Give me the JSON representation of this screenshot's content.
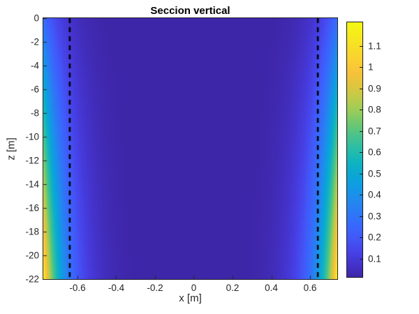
{
  "figure": {
    "title": "Seccion vertical",
    "xlabel": "x [m]",
    "ylabel": "z [m]"
  },
  "chart_data": {
    "type": "heatmap",
    "title": "Seccion vertical",
    "xlabel": "x [m]",
    "ylabel": "z [m]",
    "xlim": [
      -0.7765,
      0.7405
    ],
    "zlim": [
      -22,
      0
    ],
    "x_ticks": [
      "-0.6",
      "-0.4",
      "-0.2",
      "0",
      "0.2",
      "0.4",
      "0.6"
    ],
    "x_tick_values": [
      -0.6,
      -0.4,
      -0.2,
      0,
      0.2,
      0.4,
      0.6
    ],
    "z_ticks": [
      "0",
      "-2",
      "-4",
      "-6",
      "-8",
      "-10",
      "-12",
      "-14",
      "-16",
      "-18",
      "-20",
      "-22"
    ],
    "z_tick_values": [
      0,
      -2,
      -4,
      -6,
      -8,
      -10,
      -12,
      -14,
      -16,
      -18,
      -20,
      -22
    ],
    "grid": false,
    "dashed_lines_x": [
      -0.64,
      0.64
    ],
    "dashed_line_color": "#000000",
    "field_model": {
      "description": "v(x,z) = wall_amplitude(z) * exp(-distance_to_nearest_side_wall / decay_length); value is ~0 in the interior and peaks at the left/right domain edges, increasing with depth",
      "wall_amplitude_at_z0": 0.28,
      "wall_amplitude_at_zminus22": 1.18,
      "decay_length_m": 0.1
    },
    "colorbar": {
      "vmin": 0.01,
      "vmax": 1.215,
      "ticks": [
        "0.1",
        "0.2",
        "0.3",
        "0.4",
        "0.5",
        "0.6",
        "0.7",
        "0.8",
        "0.9",
        "1",
        "1.1"
      ],
      "tick_values": [
        0.1,
        0.2,
        0.3,
        0.4,
        0.5,
        0.6,
        0.7,
        0.8,
        0.9,
        1.0,
        1.1
      ],
      "colormap": "parula",
      "legend_position": "right"
    },
    "colormap_stops": [
      [
        0.0,
        "#3e26a8"
      ],
      [
        0.05,
        "#4433cb"
      ],
      [
        0.1,
        "#4642e8"
      ],
      [
        0.15,
        "#4356f7"
      ],
      [
        0.2,
        "#3967fe"
      ],
      [
        0.25,
        "#2d78f5"
      ],
      [
        0.3,
        "#2289ee"
      ],
      [
        0.35,
        "#1199e6"
      ],
      [
        0.4,
        "#0ba7d4"
      ],
      [
        0.45,
        "#0fb3c0"
      ],
      [
        0.5,
        "#27bda8"
      ],
      [
        0.55,
        "#46c28e"
      ],
      [
        0.6,
        "#6cc871"
      ],
      [
        0.65,
        "#97cc5b"
      ],
      [
        0.7,
        "#bccb4b"
      ],
      [
        0.75,
        "#dec53e"
      ],
      [
        0.8,
        "#f7c13a"
      ],
      [
        0.85,
        "#fbcf31"
      ],
      [
        0.9,
        "#f8dd28"
      ],
      [
        0.95,
        "#f6eb1c"
      ],
      [
        1.0,
        "#f4f913"
      ]
    ],
    "axis_color": "#262626",
    "background_color": "#ffffff"
  }
}
